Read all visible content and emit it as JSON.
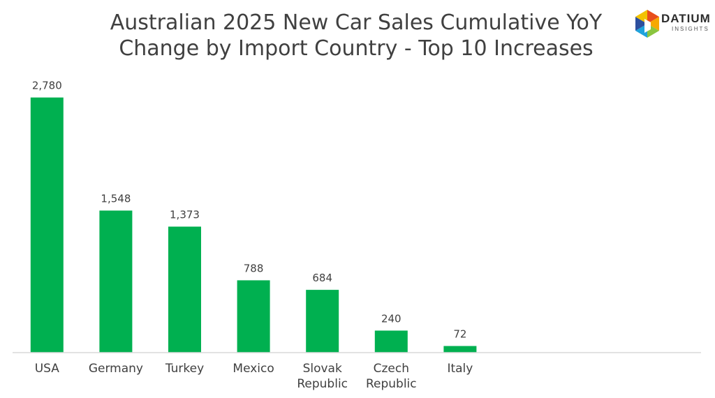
{
  "brand": {
    "name": "DATIUM",
    "tagline": "INSIGHTS",
    "colors": [
      "#e84e1b",
      "#f6a800",
      "#8bc53f",
      "#1fa3dc",
      "#2d4f9e"
    ]
  },
  "chart_data": {
    "type": "bar",
    "title_lines": [
      "Australian 2025 New Car Sales Cumulative YoY",
      "Change by Import Country - Top 10 Increases"
    ],
    "categories": [
      [
        "USA"
      ],
      [
        "Germany"
      ],
      [
        "Turkey"
      ],
      [
        "Mexico"
      ],
      [
        "Slovak",
        "Republic"
      ],
      [
        "Czech",
        "Republic"
      ],
      [
        "Italy"
      ]
    ],
    "values": [
      2780,
      1548,
      1373,
      788,
      684,
      240,
      72
    ],
    "value_labels": [
      "2,780",
      "1,548",
      "1,373",
      "788",
      "684",
      "240",
      "72"
    ],
    "slots": 10,
    "ylim": [
      0,
      2800
    ],
    "grid": false,
    "bar_color": "#00b050",
    "xlabel": "",
    "ylabel": ""
  }
}
